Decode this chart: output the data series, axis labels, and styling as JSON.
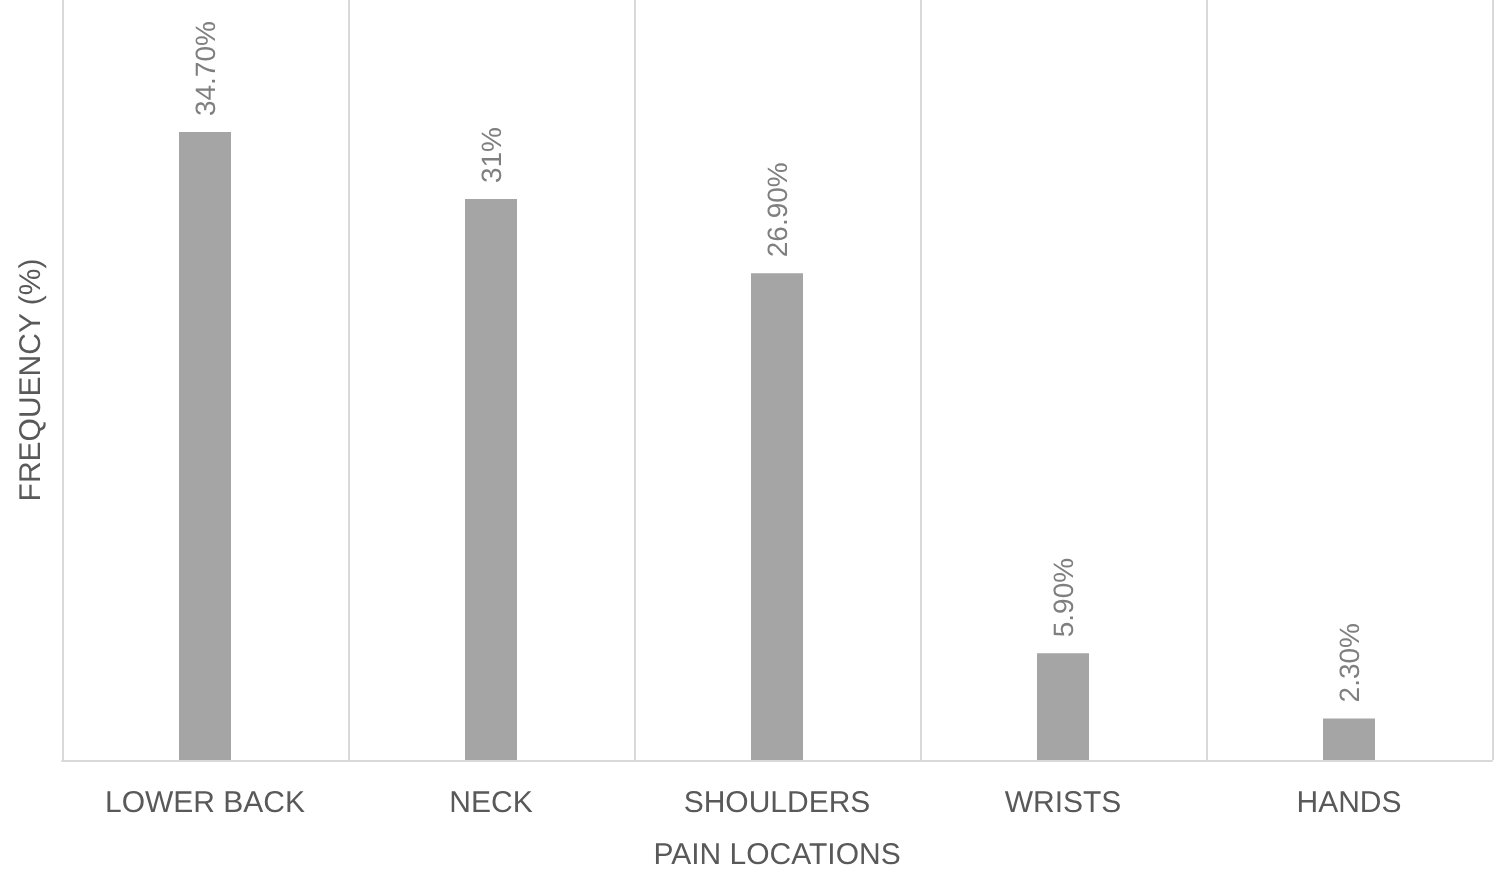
{
  "chart_data": {
    "type": "bar",
    "xlabel": "PAIN LOCATIONS",
    "ylabel": "FREQUENCY (%)",
    "categories": [
      "LOWER BACK",
      "NECK",
      "SHOULDERS",
      "WRISTS",
      "HANDS"
    ],
    "values": [
      34.7,
      31,
      26.9,
      5.9,
      2.3
    ],
    "value_labels": [
      "34.70%",
      "31%",
      "26.90%",
      "5.90%",
      "2.30%"
    ],
    "color": "#a5a5a5",
    "ylim": [
      0,
      42
    ],
    "grid": "x"
  }
}
